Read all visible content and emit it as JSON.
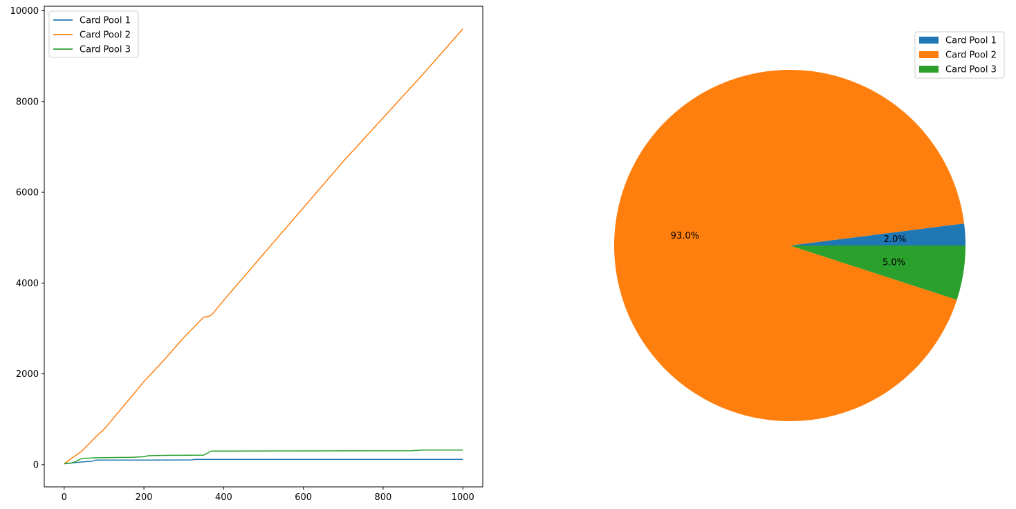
{
  "chart_data": [
    {
      "type": "line",
      "title": "",
      "xlabel": "",
      "ylabel": "",
      "xlim": [
        -50,
        1050
      ],
      "ylim": [
        -490,
        10100
      ],
      "xticks": [
        0,
        200,
        400,
        600,
        800,
        1000
      ],
      "yticks": [
        0,
        2000,
        4000,
        6000,
        8000,
        10000
      ],
      "legend_position": "upper left",
      "series": [
        {
          "name": "Card Pool 1",
          "color": "#1f77b4",
          "points": [
            [
              0,
              20
            ],
            [
              20,
              35
            ],
            [
              30,
              45
            ],
            [
              45,
              60
            ],
            [
              70,
              75
            ],
            [
              78,
              100
            ],
            [
              200,
              100
            ],
            [
              320,
              105
            ],
            [
              330,
              115
            ],
            [
              1000,
              115
            ]
          ]
        },
        {
          "name": "Card Pool 2",
          "color": "#ff7f0e",
          "points": [
            [
              0,
              20
            ],
            [
              10,
              80
            ],
            [
              20,
              150
            ],
            [
              30,
              210
            ],
            [
              40,
              270
            ],
            [
              50,
              350
            ],
            [
              60,
              440
            ],
            [
              70,
              530
            ],
            [
              80,
              620
            ],
            [
              100,
              780
            ],
            [
              150,
              1300
            ],
            [
              200,
              1830
            ],
            [
              250,
              2300
            ],
            [
              300,
              2800
            ],
            [
              350,
              3250
            ],
            [
              360,
              3260
            ],
            [
              370,
              3300
            ],
            [
              400,
              3620
            ],
            [
              500,
              4640
            ],
            [
              600,
              5660
            ],
            [
              700,
              6680
            ],
            [
              800,
              7640
            ],
            [
              900,
              8600
            ],
            [
              1000,
              9600
            ]
          ]
        },
        {
          "name": "Card Pool 3",
          "color": "#2ca02c",
          "points": [
            [
              0,
              20
            ],
            [
              20,
              40
            ],
            [
              30,
              70
            ],
            [
              40,
              120
            ],
            [
              45,
              140
            ],
            [
              70,
              145
            ],
            [
              75,
              150
            ],
            [
              100,
              155
            ],
            [
              170,
              160
            ],
            [
              200,
              175
            ],
            [
              210,
              195
            ],
            [
              260,
              205
            ],
            [
              350,
              210
            ],
            [
              365,
              280
            ],
            [
              370,
              300
            ],
            [
              870,
              305
            ],
            [
              900,
              320
            ],
            [
              1000,
              320
            ]
          ]
        }
      ]
    },
    {
      "type": "pie",
      "title": "",
      "legend_position": "upper right",
      "slices": [
        {
          "label": "Card Pool 1",
          "value": 2.0,
          "pct_label": "2.0%",
          "color": "#1f77b4"
        },
        {
          "label": "Card Pool 2",
          "value": 93.0,
          "pct_label": "93.0%",
          "color": "#ff7f0e"
        },
        {
          "label": "Card Pool 3",
          "value": 5.0,
          "pct_label": "5.0%",
          "color": "#2ca02c"
        }
      ]
    }
  ]
}
